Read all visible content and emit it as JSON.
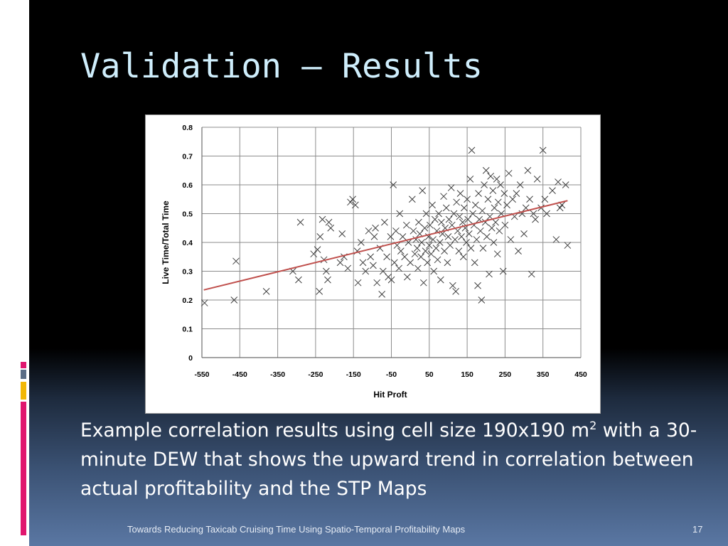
{
  "slide": {
    "title": "Validation – Results",
    "caption_before": "Example correlation results using cell size 190x190 m",
    "caption_sup": "2",
    "caption_after": " with a 30-minute DEW that shows the upward trend in correlation between actual profitability and the STP Maps",
    "footer": "Towards Reducing Taxicab Cruising Time Using Spatio-Temporal Profitability Maps",
    "page_number": "17"
  },
  "colors": {
    "background_top": "#000000",
    "background_bottom": "#5a77a3",
    "title": "#cfeefc",
    "trendline": "#c0504d",
    "marker": "#404040",
    "accent_1": "#e0166e",
    "accent_2": "#5b6d86",
    "accent_3": "#f2b705"
  },
  "chart_data": {
    "type": "scatter",
    "title": "",
    "xlabel": "Hit Proft",
    "ylabel": "Live Time/Total Time",
    "xlim": [
      -550,
      450
    ],
    "ylim": [
      0,
      0.8
    ],
    "x_ticks": [
      -550,
      -450,
      -350,
      -250,
      -150,
      -50,
      50,
      150,
      250,
      350,
      450
    ],
    "y_ticks": [
      0,
      0.1,
      0.2,
      0.3,
      0.4,
      0.5,
      0.6,
      0.7,
      0.8
    ],
    "y_tick_labels": [
      "0",
      "0.1",
      "0.2",
      "0.3",
      "0.4",
      "0.5",
      "0.6",
      "0.7",
      "0.8"
    ],
    "grid": true,
    "marker": "x",
    "trendline": {
      "x": [
        -545,
        415
      ],
      "y": [
        0.235,
        0.545
      ]
    },
    "points": [
      [
        -543,
        0.19
      ],
      [
        -465,
        0.2
      ],
      [
        -460,
        0.335
      ],
      [
        -380,
        0.23
      ],
      [
        -310,
        0.3
      ],
      [
        -295,
        0.27
      ],
      [
        -290,
        0.47
      ],
      [
        -255,
        0.36
      ],
      [
        -245,
        0.375
      ],
      [
        -240,
        0.23
      ],
      [
        -238,
        0.42
      ],
      [
        -232,
        0.48
      ],
      [
        -228,
        0.34
      ],
      [
        -222,
        0.3
      ],
      [
        -218,
        0.27
      ],
      [
        -215,
        0.47
      ],
      [
        -210,
        0.45
      ],
      [
        -185,
        0.33
      ],
      [
        -180,
        0.43
      ],
      [
        -175,
        0.35
      ],
      [
        -165,
        0.31
      ],
      [
        -158,
        0.54
      ],
      [
        -152,
        0.55
      ],
      [
        -145,
        0.53
      ],
      [
        -140,
        0.37
      ],
      [
        -138,
        0.26
      ],
      [
        -130,
        0.4
      ],
      [
        -125,
        0.33
      ],
      [
        -118,
        0.3
      ],
      [
        -110,
        0.44
      ],
      [
        -105,
        0.35
      ],
      [
        -98,
        0.32
      ],
      [
        -95,
        0.42
      ],
      [
        -92,
        0.45
      ],
      [
        -88,
        0.26
      ],
      [
        -80,
        0.38
      ],
      [
        -75,
        0.22
      ],
      [
        -72,
        0.3
      ],
      [
        -68,
        0.47
      ],
      [
        -62,
        0.35
      ],
      [
        -58,
        0.28
      ],
      [
        -52,
        0.42
      ],
      [
        -50,
        0.27
      ],
      [
        -45,
        0.6
      ],
      [
        -42,
        0.33
      ],
      [
        -38,
        0.44
      ],
      [
        -35,
        0.39
      ],
      [
        -30,
        0.31
      ],
      [
        -28,
        0.5
      ],
      [
        -25,
        0.37
      ],
      [
        -20,
        0.42
      ],
      [
        -15,
        0.35
      ],
      [
        -10,
        0.46
      ],
      [
        -8,
        0.28
      ],
      [
        -5,
        0.4
      ],
      [
        0,
        0.33
      ],
      [
        5,
        0.55
      ],
      [
        8,
        0.44
      ],
      [
        12,
        0.36
      ],
      [
        15,
        0.41
      ],
      [
        18,
        0.38
      ],
      [
        20,
        0.31
      ],
      [
        22,
        0.47
      ],
      [
        25,
        0.43
      ],
      [
        28,
        0.35
      ],
      [
        30,
        0.4
      ],
      [
        32,
        0.58
      ],
      [
        35,
        0.26
      ],
      [
        38,
        0.45
      ],
      [
        40,
        0.37
      ],
      [
        42,
        0.5
      ],
      [
        45,
        0.33
      ],
      [
        48,
        0.42
      ],
      [
        50,
        0.39
      ],
      [
        52,
        0.46
      ],
      [
        55,
        0.36
      ],
      [
        58,
        0.53
      ],
      [
        60,
        0.41
      ],
      [
        62,
        0.3
      ],
      [
        65,
        0.48
      ],
      [
        68,
        0.38
      ],
      [
        70,
        0.44
      ],
      [
        72,
        0.34
      ],
      [
        75,
        0.5
      ],
      [
        78,
        0.4
      ],
      [
        80,
        0.27
      ],
      [
        82,
        0.47
      ],
      [
        85,
        0.43
      ],
      [
        88,
        0.56
      ],
      [
        90,
        0.37
      ],
      [
        92,
        0.45
      ],
      [
        95,
        0.52
      ],
      [
        98,
        0.33
      ],
      [
        100,
        0.42
      ],
      [
        102,
        0.48
      ],
      [
        105,
        0.39
      ],
      [
        108,
        0.59
      ],
      [
        110,
        0.46
      ],
      [
        112,
        0.25
      ],
      [
        115,
        0.5
      ],
      [
        118,
        0.41
      ],
      [
        120,
        0.23
      ],
      [
        122,
        0.54
      ],
      [
        125,
        0.44
      ],
      [
        128,
        0.37
      ],
      [
        130,
        0.49
      ],
      [
        132,
        0.57
      ],
      [
        135,
        0.42
      ],
      [
        138,
        0.47
      ],
      [
        140,
        0.35
      ],
      [
        142,
        0.52
      ],
      [
        145,
        0.45
      ],
      [
        148,
        0.4
      ],
      [
        150,
        0.55
      ],
      [
        152,
        0.48
      ],
      [
        155,
        0.43
      ],
      [
        158,
        0.62
      ],
      [
        160,
        0.38
      ],
      [
        162,
        0.72
      ],
      [
        165,
        0.5
      ],
      [
        168,
        0.46
      ],
      [
        170,
        0.33
      ],
      [
        172,
        0.53
      ],
      [
        175,
        0.41
      ],
      [
        178,
        0.25
      ],
      [
        180,
        0.57
      ],
      [
        182,
        0.48
      ],
      [
        185,
        0.44
      ],
      [
        188,
        0.2
      ],
      [
        190,
        0.51
      ],
      [
        192,
        0.38
      ],
      [
        195,
        0.6
      ],
      [
        198,
        0.47
      ],
      [
        200,
        0.65
      ],
      [
        202,
        0.42
      ],
      [
        205,
        0.55
      ],
      [
        208,
        0.29
      ],
      [
        210,
        0.49
      ],
      [
        212,
        0.63
      ],
      [
        215,
        0.45
      ],
      [
        218,
        0.58
      ],
      [
        220,
        0.4
      ],
      [
        222,
        0.52
      ],
      [
        225,
        0.47
      ],
      [
        228,
        0.62
      ],
      [
        230,
        0.36
      ],
      [
        232,
        0.54
      ],
      [
        235,
        0.44
      ],
      [
        238,
        0.6
      ],
      [
        240,
        0.5
      ],
      [
        245,
        0.3
      ],
      [
        248,
        0.57
      ],
      [
        250,
        0.46
      ],
      [
        255,
        0.53
      ],
      [
        260,
        0.64
      ],
      [
        265,
        0.41
      ],
      [
        270,
        0.55
      ],
      [
        275,
        0.49
      ],
      [
        280,
        0.57
      ],
      [
        285,
        0.37
      ],
      [
        290,
        0.6
      ],
      [
        295,
        0.5
      ],
      [
        300,
        0.43
      ],
      [
        305,
        0.52
      ],
      [
        310,
        0.65
      ],
      [
        315,
        0.55
      ],
      [
        320,
        0.29
      ],
      [
        325,
        0.5
      ],
      [
        330,
        0.48
      ],
      [
        335,
        0.62
      ],
      [
        345,
        0.52
      ],
      [
        350,
        0.72
      ],
      [
        355,
        0.55
      ],
      [
        360,
        0.5
      ],
      [
        375,
        0.58
      ],
      [
        385,
        0.41
      ],
      [
        390,
        0.61
      ],
      [
        395,
        0.52
      ],
      [
        400,
        0.53
      ],
      [
        410,
        0.6
      ],
      [
        415,
        0.39
      ]
    ]
  }
}
